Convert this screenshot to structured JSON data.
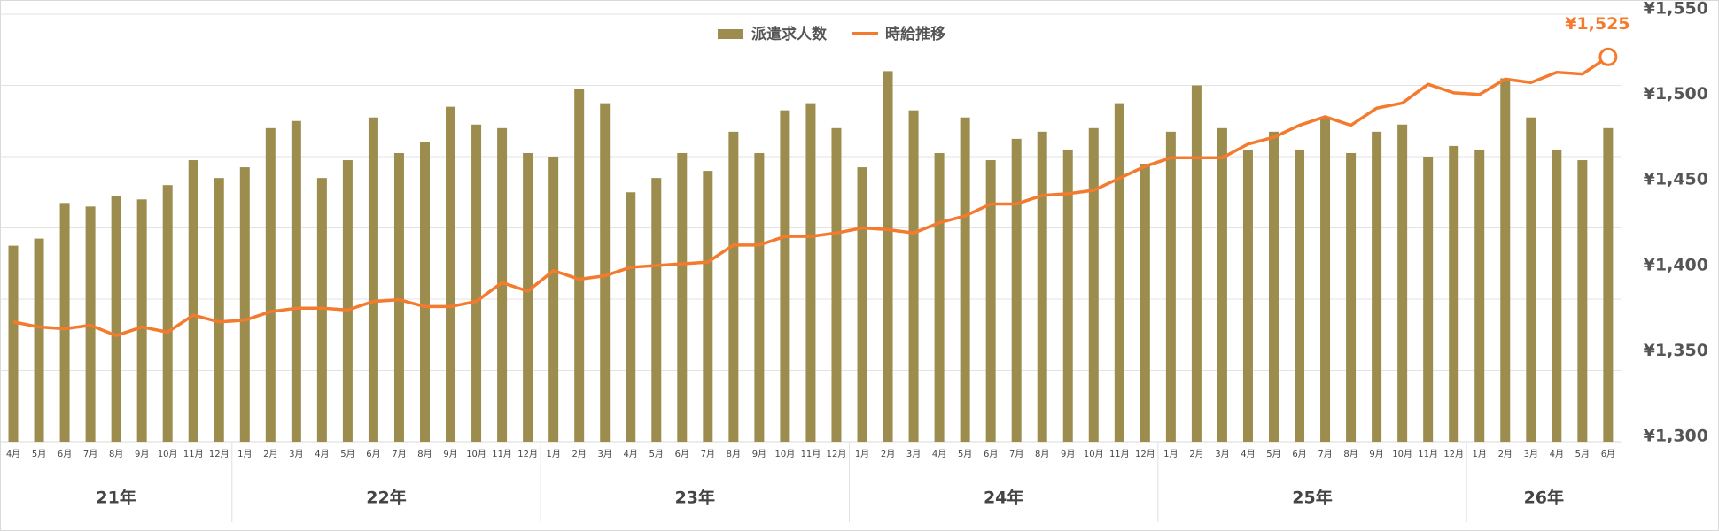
{
  "chart_data": {
    "type": "bar_line",
    "groups": [
      {
        "label": "21年",
        "categories": [
          "4月",
          "5月",
          "6月",
          "7月",
          "8月",
          "9月",
          "10月",
          "11月",
          "12月"
        ]
      },
      {
        "label": "22年",
        "categories": [
          "1月",
          "2月",
          "3月",
          "4月",
          "5月",
          "6月",
          "7月",
          "8月",
          "9月",
          "10月",
          "11月",
          "12月"
        ]
      },
      {
        "label": "23年",
        "categories": [
          "1月",
          "2月",
          "3月",
          "4月",
          "5月",
          "6月",
          "7月",
          "8月",
          "9月",
          "10月",
          "11月",
          "12月"
        ]
      },
      {
        "label": "24年",
        "categories": [
          "1月",
          "2月",
          "3月",
          "4月",
          "5月",
          "6月",
          "7月",
          "8月",
          "9月",
          "10月",
          "11月",
          "12月"
        ]
      },
      {
        "label": "25年",
        "categories": [
          "1月",
          "2月",
          "3月",
          "4月",
          "5月",
          "6月",
          "7月",
          "8月",
          "9月",
          "10月",
          "11月",
          "12月"
        ]
      },
      {
        "label": "26年",
        "categories": [
          "1月",
          "2月",
          "3月",
          "4月",
          "5月",
          "6月"
        ]
      }
    ],
    "series": [
      {
        "name": "派遣求人数",
        "type": "bar",
        "axis": "y",
        "color": "#9c8d4e",
        "values": [
          55,
          57,
          67,
          66,
          69,
          68,
          72,
          79,
          74,
          77,
          88,
          90,
          74,
          79,
          91,
          81,
          84,
          94,
          89,
          88,
          81,
          80,
          99,
          95,
          70,
          74,
          81,
          76,
          87,
          81,
          93,
          95,
          88,
          77,
          104,
          93,
          81,
          91,
          79,
          85,
          87,
          82,
          88,
          95,
          78,
          87,
          100,
          88,
          82,
          87,
          82,
          91,
          81,
          87,
          89,
          80,
          83,
          82,
          102,
          91,
          82,
          79,
          88
        ]
      },
      {
        "name": "時給推移",
        "type": "line",
        "axis": "y2",
        "color": "#f47b2e",
        "values": [
          1370,
          1367,
          1366,
          1368,
          1362,
          1367,
          1364,
          1374,
          1370,
          1371,
          1376,
          1378,
          1378,
          1377,
          1382,
          1383,
          1379,
          1379,
          1382,
          1393,
          1388,
          1400,
          1395,
          1397,
          1402,
          1403,
          1404,
          1405,
          1415,
          1415,
          1420,
          1420,
          1422,
          1425,
          1424,
          1422,
          1428,
          1432,
          1439,
          1439,
          1444,
          1445,
          1447,
          1454,
          1461,
          1466,
          1466,
          1466,
          1474,
          1478,
          1485,
          1490,
          1485,
          1495,
          1498,
          1509,
          1504,
          1503,
          1512,
          1510,
          1516,
          1515,
          1525
        ],
        "value_labels": [
          null,
          null,
          null,
          null,
          null,
          null,
          null,
          null,
          null,
          null,
          null,
          null,
          null,
          null,
          null,
          null,
          null,
          null,
          null,
          null,
          null,
          null,
          null,
          null,
          null,
          null,
          null,
          null,
          null,
          null,
          null,
          null,
          null,
          null,
          null,
          null,
          null,
          null,
          null,
          null,
          null,
          null,
          null,
          null,
          null,
          null,
          null,
          null,
          null,
          null,
          null,
          null,
          null,
          null,
          null,
          null,
          null,
          null,
          null,
          null,
          null,
          null,
          "¥1,525"
        ]
      }
    ],
    "ylim": [
      0,
      120
    ],
    "yticks": [
      0,
      20,
      40,
      60,
      80,
      100,
      120
    ],
    "show_y_tick_labels": false,
    "y2lim": [
      1300,
      1550
    ],
    "y2ticks": [
      {
        "value": 1300,
        "label": "¥1,300"
      },
      {
        "value": 1350,
        "label": "¥1,350"
      },
      {
        "value": 1400,
        "label": "¥1,400"
      },
      {
        "value": 1450,
        "label": "¥1,450"
      },
      {
        "value": 1500,
        "label": "¥1,500"
      },
      {
        "value": 1550,
        "label": "¥1,550"
      }
    ],
    "grid": true,
    "legend": "top"
  }
}
